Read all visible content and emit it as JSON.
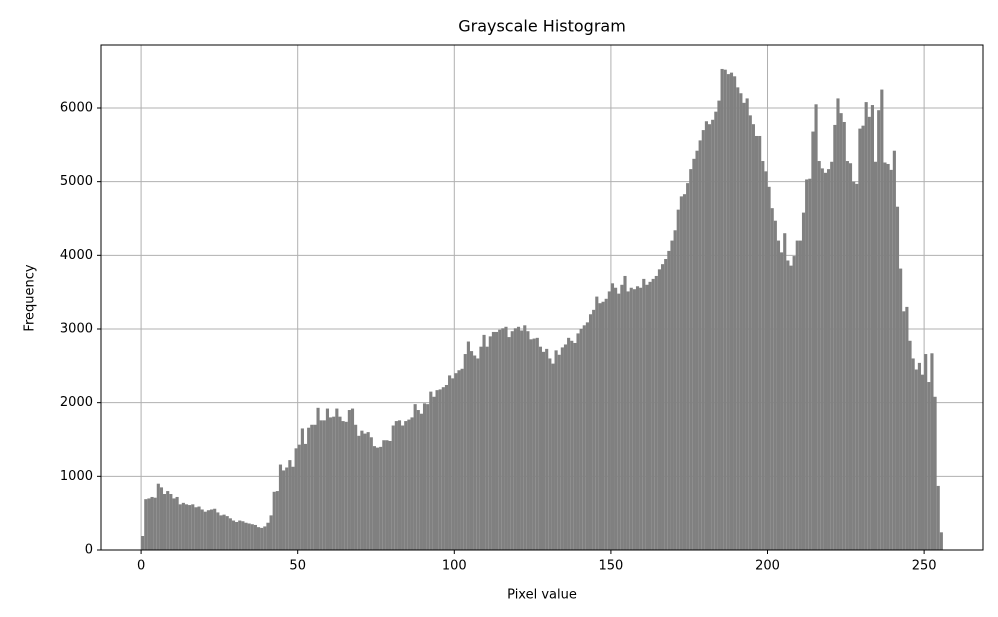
{
  "chart_data": {
    "type": "histogram",
    "title": "Grayscale Histogram",
    "x_label": "Pixel value",
    "y_label": "Frequency",
    "color": "#808080",
    "grid": true,
    "xlim": [
      -12.8,
      268.8
    ],
    "ylim": [
      0,
      6855
    ],
    "xticks": [
      0,
      50,
      100,
      150,
      200,
      250
    ],
    "yticks": [
      0,
      1000,
      2000,
      3000,
      4000,
      5000,
      6000
    ],
    "bins": [
      0,
      1,
      2,
      3,
      4,
      5,
      6,
      7,
      8,
      9,
      10,
      11,
      12,
      13,
      14,
      15,
      16,
      17,
      18,
      19,
      20,
      21,
      22,
      23,
      24,
      25,
      26,
      27,
      28,
      29,
      30,
      31,
      32,
      33,
      34,
      35,
      36,
      37,
      38,
      39,
      40,
      41,
      42,
      43,
      44,
      45,
      46,
      47,
      48,
      49,
      50,
      51,
      52,
      53,
      54,
      55,
      56,
      57,
      58,
      59,
      60,
      61,
      62,
      63,
      64,
      65,
      66,
      67,
      68,
      69,
      70,
      71,
      72,
      73,
      74,
      75,
      76,
      77,
      78,
      79,
      80,
      81,
      82,
      83,
      84,
      85,
      86,
      87,
      88,
      89,
      90,
      91,
      92,
      93,
      94,
      95,
      96,
      97,
      98,
      99,
      100,
      101,
      102,
      103,
      104,
      105,
      106,
      107,
      108,
      109,
      110,
      111,
      112,
      113,
      114,
      115,
      116,
      117,
      118,
      119,
      120,
      121,
      122,
      123,
      124,
      125,
      126,
      127,
      128,
      129,
      130,
      131,
      132,
      133,
      134,
      135,
      136,
      137,
      138,
      139,
      140,
      141,
      142,
      143,
      144,
      145,
      146,
      147,
      148,
      149,
      150,
      151,
      152,
      153,
      154,
      155,
      156,
      157,
      158,
      159,
      160,
      161,
      162,
      163,
      164,
      165,
      166,
      167,
      168,
      169,
      170,
      171,
      172,
      173,
      174,
      175,
      176,
      177,
      178,
      179,
      180,
      181,
      182,
      183,
      184,
      185,
      186,
      187,
      188,
      189,
      190,
      191,
      192,
      193,
      194,
      195,
      196,
      197,
      198,
      199,
      200,
      201,
      202,
      203,
      204,
      205,
      206,
      207,
      208,
      209,
      210,
      211,
      212,
      213,
      214,
      215,
      216,
      217,
      218,
      219,
      220,
      221,
      222,
      223,
      224,
      225,
      226,
      227,
      228,
      229,
      230,
      231,
      232,
      233,
      234,
      235,
      236,
      237,
      238,
      239,
      240,
      241,
      242,
      243,
      244,
      245,
      246,
      247,
      248,
      249,
      250,
      251,
      252,
      253,
      254,
      255,
      256
    ],
    "values": [
      190,
      690,
      700,
      720,
      710,
      900,
      850,
      760,
      800,
      760,
      700,
      720,
      620,
      640,
      620,
      610,
      620,
      580,
      590,
      550,
      520,
      540,
      550,
      560,
      510,
      470,
      480,
      460,
      430,
      400,
      380,
      400,
      390,
      370,
      360,
      350,
      340,
      310,
      300,
      320,
      370,
      470,
      790,
      800,
      1160,
      1080,
      1120,
      1220,
      1130,
      1380,
      1430,
      1650,
      1440,
      1660,
      1700,
      1700,
      1930,
      1760,
      1760,
      1920,
      1800,
      1810,
      1920,
      1810,
      1750,
      1740,
      1900,
      1920,
      1700,
      1550,
      1620,
      1580,
      1600,
      1530,
      1410,
      1390,
      1400,
      1490,
      1490,
      1480,
      1690,
      1750,
      1760,
      1690,
      1750,
      1770,
      1800,
      1980,
      1900,
      1850,
      1990,
      1980,
      2150,
      2080,
      2170,
      2180,
      2210,
      2240,
      2370,
      2330,
      2400,
      2440,
      2460,
      2660,
      2830,
      2700,
      2640,
      2600,
      2760,
      2920,
      2760,
      2900,
      2960,
      2960,
      2990,
      3010,
      3030,
      2890,
      2970,
      3010,
      3030,
      2980,
      3050,
      2970,
      2860,
      2870,
      2880,
      2760,
      2690,
      2730,
      2600,
      2530,
      2710,
      2650,
      2750,
      2790,
      2880,
      2840,
      2810,
      2940,
      3000,
      3050,
      3090,
      3200,
      3260,
      3440,
      3350,
      3370,
      3410,
      3510,
      3620,
      3560,
      3480,
      3600,
      3720,
      3510,
      3560,
      3540,
      3580,
      3560,
      3680,
      3600,
      3640,
      3680,
      3720,
      3810,
      3880,
      3950,
      4060,
      4200,
      4340,
      4620,
      4800,
      4830,
      4980,
      5170,
      5310,
      5420,
      5560,
      5700,
      5820,
      5780,
      5840,
      5950,
      6100,
      6530,
      6520,
      6460,
      6480,
      6430,
      6280,
      6200,
      6070,
      6130,
      5900,
      5780,
      5620,
      5620,
      5280,
      5140,
      4930,
      4640,
      4470,
      4200,
      4040,
      4300,
      3930,
      3860,
      3990,
      4200,
      4200,
      4580,
      5030,
      5040,
      5680,
      6050,
      5280,
      5180,
      5120,
      5170,
      5270,
      5770,
      6130,
      5930,
      5810,
      5280,
      5250,
      5000,
      4970,
      5720,
      5760,
      6080,
      5880,
      6040,
      5270,
      5970,
      6250,
      5260,
      5240,
      5160,
      5420,
      4660,
      3820,
      3240,
      3300,
      2840,
      2600,
      2450,
      2540,
      2380,
      2660,
      2280,
      2670,
      2080,
      870,
      240
    ]
  }
}
